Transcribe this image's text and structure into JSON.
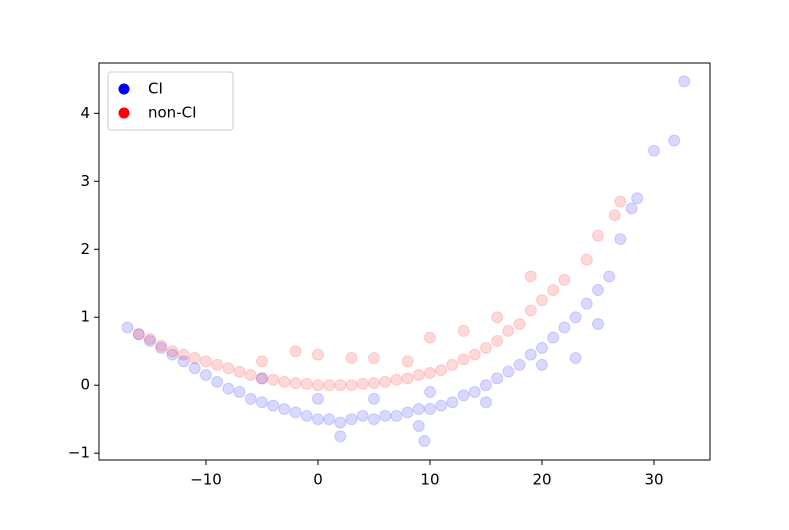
{
  "chart_data": {
    "type": "scatter",
    "xlim": [
      -19.55,
      35.0
    ],
    "ylim": [
      -1.1,
      4.74
    ],
    "xticks": [
      {
        "value": -10,
        "label": "−10"
      },
      0,
      10,
      20,
      30
    ],
    "yticks": [
      {
        "value": -1,
        "label": "−1"
      },
      0,
      1,
      2,
      3,
      4
    ],
    "legend": "upper left",
    "series": [
      {
        "name": "CI",
        "color": "#0000ff",
        "x": [
          -17,
          -16,
          -15,
          -14,
          -13,
          -12,
          -11,
          -10,
          -9,
          -8,
          -7,
          -6,
          -5,
          -4,
          -3,
          -2,
          -1,
          0,
          1,
          2,
          2,
          3,
          4,
          5,
          6,
          7,
          8,
          9,
          9,
          9.5,
          10,
          11,
          12,
          13,
          14,
          15,
          16,
          17,
          18,
          19,
          20,
          21,
          22,
          23,
          24,
          25,
          26,
          27,
          28,
          28.5,
          30,
          31.8,
          32.7,
          -5,
          0,
          5,
          10,
          15,
          20,
          23,
          25
        ],
        "values": [
          0.85,
          0.75,
          0.65,
          0.55,
          0.45,
          0.35,
          0.25,
          0.15,
          0.05,
          -0.05,
          -0.1,
          -0.2,
          -0.25,
          -0.3,
          -0.35,
          -0.4,
          -0.45,
          -0.5,
          -0.5,
          -0.55,
          -0.75,
          -0.5,
          -0.45,
          -0.5,
          -0.45,
          -0.45,
          -0.4,
          -0.35,
          -0.6,
          -0.82,
          -0.35,
          -0.3,
          -0.25,
          -0.15,
          -0.1,
          0,
          0.1,
          0.2,
          0.3,
          0.45,
          0.55,
          0.7,
          0.85,
          1.0,
          1.2,
          1.4,
          1.6,
          2.15,
          2.6,
          2.75,
          3.45,
          3.6,
          4.47,
          0.1,
          -0.2,
          -0.2,
          -0.1,
          -0.25,
          0.3,
          0.4,
          0.9
        ]
      },
      {
        "name": "non-CI",
        "color": "#ff0000",
        "x": [
          -16,
          -15,
          -14,
          -13,
          -12,
          -11,
          -10,
          -9,
          -8,
          -7,
          -6,
          -5,
          -4,
          -3,
          -2,
          -1,
          0,
          1,
          2,
          3,
          4,
          5,
          6,
          7,
          8,
          9,
          10,
          11,
          12,
          13,
          14,
          15,
          16,
          17,
          18,
          19,
          20,
          21,
          22,
          24,
          25,
          26.5,
          27,
          -5,
          -2,
          0,
          3,
          5,
          8,
          10,
          13,
          16,
          19
        ],
        "values": [
          0.75,
          0.68,
          0.58,
          0.5,
          0.45,
          0.4,
          0.35,
          0.3,
          0.25,
          0.2,
          0.15,
          0.1,
          0.08,
          0.05,
          0.03,
          0.02,
          0,
          0,
          0,
          0,
          0.02,
          0.03,
          0.05,
          0.08,
          0.1,
          0.15,
          0.18,
          0.22,
          0.3,
          0.38,
          0.45,
          0.55,
          0.65,
          0.8,
          0.9,
          1.1,
          1.25,
          1.4,
          1.55,
          1.85,
          2.2,
          2.5,
          2.7,
          0.35,
          0.5,
          0.45,
          0.4,
          0.4,
          0.35,
          0.7,
          0.8,
          1.0,
          1.6
        ]
      }
    ]
  }
}
